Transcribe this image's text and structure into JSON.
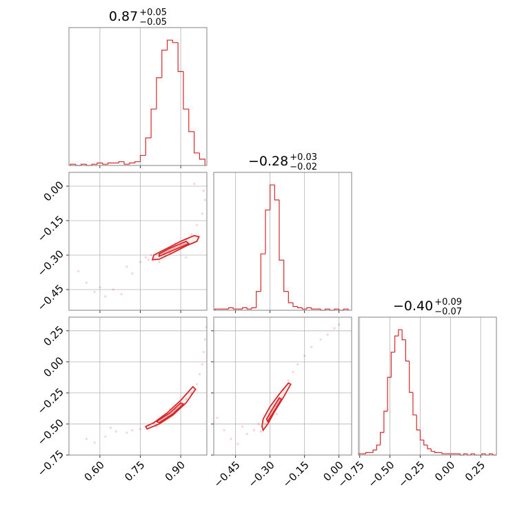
{
  "chart_data": [
    {
      "type": "histogram",
      "title": "0.87",
      "title_upper": "+0.05",
      "title_lower": "−0.05",
      "color": "#d62728",
      "bins": [
        0.49,
        0.51,
        0.53,
        0.55,
        0.57,
        0.59,
        0.61,
        0.63,
        0.65,
        0.67,
        0.69,
        0.71,
        0.73,
        0.75,
        0.77,
        0.79,
        0.81,
        0.83,
        0.85,
        0.87,
        0.89,
        0.91,
        0.93,
        0.95,
        0.97,
        0.99
      ],
      "counts": [
        1,
        0,
        1,
        0,
        1,
        2,
        1,
        2,
        2,
        3,
        1,
        2,
        3,
        8,
        22,
        45,
        70,
        92,
        100,
        98,
        75,
        45,
        27,
        10,
        5
      ],
      "xlim": [
        0.485,
        0.997
      ],
      "ylim": [
        0,
        110
      ],
      "xticks": [
        0.6,
        0.75,
        0.9
      ],
      "grid": true
    },
    {
      "type": "histogram",
      "title": "−0.28",
      "title_upper": "+0.03",
      "title_lower": "−0.02",
      "color": "#d62728",
      "bins": [
        -0.54,
        -0.52,
        -0.5,
        -0.48,
        -0.46,
        -0.44,
        -0.42,
        -0.4,
        -0.38,
        -0.36,
        -0.34,
        -0.32,
        -0.3,
        -0.28,
        -0.26,
        -0.24,
        -0.22,
        -0.2,
        -0.18,
        -0.16,
        -0.14,
        -0.12,
        -0.1,
        -0.08,
        -0.06,
        -0.04,
        -0.02,
        0.0,
        0.02,
        0.04
      ],
      "counts": [
        1,
        1,
        1,
        2,
        1,
        1,
        2,
        1,
        2,
        15,
        45,
        80,
        100,
        88,
        40,
        15,
        6,
        3,
        2,
        1,
        2,
        1,
        1,
        0,
        1,
        0,
        1,
        0,
        1
      ],
      "xlim": [
        -0.545,
        0.055
      ],
      "ylim": [
        0,
        110
      ],
      "xticks": [
        -0.45,
        -0.3,
        -0.15,
        0.0
      ],
      "grid": true
    },
    {
      "type": "histogram",
      "title": "−0.40",
      "title_upper": "+0.09",
      "title_lower": "−0.07",
      "color": "#d62728",
      "bins": [
        -0.76,
        -0.73,
        -0.7,
        -0.67,
        -0.64,
        -0.61,
        -0.58,
        -0.55,
        -0.52,
        -0.49,
        -0.46,
        -0.43,
        -0.4,
        -0.37,
        -0.34,
        -0.31,
        -0.28,
        -0.25,
        -0.22,
        -0.19,
        -0.16,
        -0.13,
        -0.1,
        -0.07,
        -0.04,
        -0.01,
        0.02,
        0.05,
        0.08,
        0.11,
        0.14,
        0.17,
        0.2,
        0.23,
        0.26,
        0.29,
        0.32,
        0.35,
        0.38
      ],
      "counts": [
        1,
        1,
        2,
        2,
        4,
        8,
        18,
        35,
        62,
        82,
        95,
        100,
        92,
        75,
        50,
        32,
        20,
        12,
        8,
        5,
        3,
        2,
        2,
        1,
        1,
        1,
        1,
        1,
        0,
        1,
        0,
        1,
        0,
        0,
        1,
        0,
        1,
        0
      ],
      "xlim": [
        -0.76,
        0.38
      ],
      "ylim": [
        0,
        110
      ],
      "xticks": [
        {
          "value": -0.75,
          "label": "−0.75"
        },
        {
          "value": -0.5,
          "label": "−0.50"
        },
        {
          "value": -0.25,
          "label": "−0.25"
        },
        {
          "value": 0.0,
          "label": "0.00"
        },
        0.25
      ],
      "grid": true
    },
    {
      "type": "scatter",
      "color": "#d62728",
      "x": [
        0.52,
        0.55,
        0.58,
        0.62,
        0.65,
        0.68,
        0.7,
        0.72,
        0.75,
        0.77,
        0.78,
        0.79,
        0.82,
        0.84,
        0.86,
        0.88,
        0.9,
        0.92,
        0.94,
        0.96,
        0.98,
        0.99,
        0.985,
        0.95,
        0.6,
        0.92
      ],
      "y": [
        -0.37,
        -0.42,
        -0.46,
        -0.48,
        -0.45,
        -0.47,
        -0.35,
        -0.38,
        -0.33,
        -0.31,
        -0.32,
        -0.3,
        -0.33,
        -0.28,
        -0.29,
        -0.25,
        -0.27,
        -0.23,
        -0.21,
        -0.17,
        -0.12,
        -0.06,
        -0.02,
        0.01,
        -0.44,
        -0.31
      ],
      "contours": [
        {
          "x": [
            0.795,
            0.82,
            0.87,
            0.92,
            0.96,
            0.968,
            0.95,
            0.9,
            0.85,
            0.8
          ],
          "y": [
            -0.32,
            -0.318,
            -0.29,
            -0.26,
            -0.24,
            -0.22,
            -0.215,
            -0.24,
            -0.27,
            -0.3
          ]
        },
        {
          "x": [
            0.82,
            0.88,
            0.93,
            0.92,
            0.86,
            0.82
          ],
          "y": [
            -0.305,
            -0.275,
            -0.25,
            -0.24,
            -0.27,
            -0.295
          ]
        }
      ],
      "xlim": [
        0.485,
        0.997
      ],
      "ylim": [
        -0.54,
        0.06
      ],
      "xticks": [
        0.6,
        0.75,
        0.9
      ],
      "yticks": [
        {
          "value": 0.0,
          "label": "0.00"
        },
        {
          "value": -0.15,
          "label": "−0.15"
        },
        {
          "value": -0.3,
          "label": "−0.30"
        },
        {
          "value": -0.45,
          "label": "−0.45"
        }
      ],
      "grid": true
    },
    {
      "type": "scatter",
      "color": "#d62728",
      "x": [
        0.55,
        0.58,
        0.62,
        0.66,
        0.7,
        0.72,
        0.75,
        0.78,
        0.8,
        0.83,
        0.85,
        0.88,
        0.9,
        0.92,
        0.94,
        0.96,
        0.97,
        0.98,
        0.985,
        0.99,
        0.995,
        0.86,
        0.81,
        0.64
      ],
      "y": [
        -0.62,
        -0.65,
        -0.6,
        -0.56,
        -0.57,
        -0.55,
        -0.54,
        -0.51,
        -0.49,
        -0.45,
        -0.43,
        -0.38,
        -0.34,
        -0.3,
        -0.25,
        -0.18,
        -0.1,
        -0.02,
        0.08,
        0.18,
        0.28,
        -0.38,
        -0.52,
        -0.53
      ],
      "contours": [
        {
          "x": [
            0.775,
            0.82,
            0.87,
            0.92,
            0.955,
            0.945,
            0.9,
            0.85,
            0.8,
            0.77
          ],
          "y": [
            -0.54,
            -0.5,
            -0.43,
            -0.33,
            -0.22,
            -0.2,
            -0.31,
            -0.41,
            -0.49,
            -0.52
          ]
        },
        {
          "x": [
            0.82,
            0.87,
            0.91,
            0.9,
            0.86,
            0.81
          ],
          "y": [
            -0.49,
            -0.42,
            -0.34,
            -0.33,
            -0.41,
            -0.48
          ]
        }
      ],
      "xlim": [
        0.485,
        0.997
      ],
      "ylim": [
        -0.75,
        0.36
      ],
      "xticks": [
        {
          "value": 0.6,
          "label": "0.60"
        },
        0.75,
        {
          "value": 0.9,
          "label": "0.90"
        }
      ],
      "yticks": [
        0.25,
        {
          "value": 0.0,
          "label": "0.00"
        },
        {
          "value": -0.25,
          "label": "−0.25"
        },
        {
          "value": -0.5,
          "label": "−0.50"
        },
        {
          "value": -0.75,
          "label": "−0.75"
        }
      ],
      "grid": true
    },
    {
      "type": "scatter",
      "color": "#d62728",
      "x": [
        -0.53,
        -0.5,
        -0.47,
        -0.44,
        -0.42,
        -0.4,
        -0.37,
        -0.34,
        -0.32,
        -0.3,
        -0.28,
        -0.26,
        -0.24,
        -0.22,
        -0.2,
        -0.18,
        -0.15,
        -0.12,
        -0.08,
        -0.05,
        -0.02,
        0.0,
        -0.27,
        -0.35
      ],
      "y": [
        -0.45,
        -0.55,
        -0.62,
        -0.66,
        -0.52,
        -0.58,
        -0.55,
        -0.56,
        -0.5,
        -0.44,
        -0.35,
        -0.3,
        -0.22,
        -0.15,
        -0.08,
        -0.02,
        0.05,
        0.12,
        0.18,
        0.22,
        0.27,
        0.3,
        -0.42,
        -0.5
      ],
      "contours": [
        {
          "x": [
            -0.33,
            -0.31,
            -0.28,
            -0.24,
            -0.21,
            -0.22,
            -0.26,
            -0.3,
            -0.33,
            -0.335
          ],
          "y": [
            -0.55,
            -0.5,
            -0.4,
            -0.28,
            -0.18,
            -0.17,
            -0.26,
            -0.36,
            -0.46,
            -0.52
          ]
        },
        {
          "x": [
            -0.31,
            -0.28,
            -0.25,
            -0.26,
            -0.29,
            -0.315
          ],
          "y": [
            -0.48,
            -0.39,
            -0.3,
            -0.29,
            -0.38,
            -0.46
          ]
        }
      ],
      "xlim": [
        -0.545,
        0.055
      ],
      "ylim": [
        -0.75,
        0.36
      ],
      "xticks": [
        {
          "value": -0.45,
          "label": "−0.45"
        },
        {
          "value": -0.3,
          "label": "−0.30"
        },
        {
          "value": -0.15,
          "label": "−0.15"
        },
        {
          "value": 0.0,
          "label": "0.00"
        }
      ],
      "yticks": [
        0.25,
        0.0,
        -0.25,
        -0.5,
        -0.75
      ],
      "grid": true
    }
  ]
}
